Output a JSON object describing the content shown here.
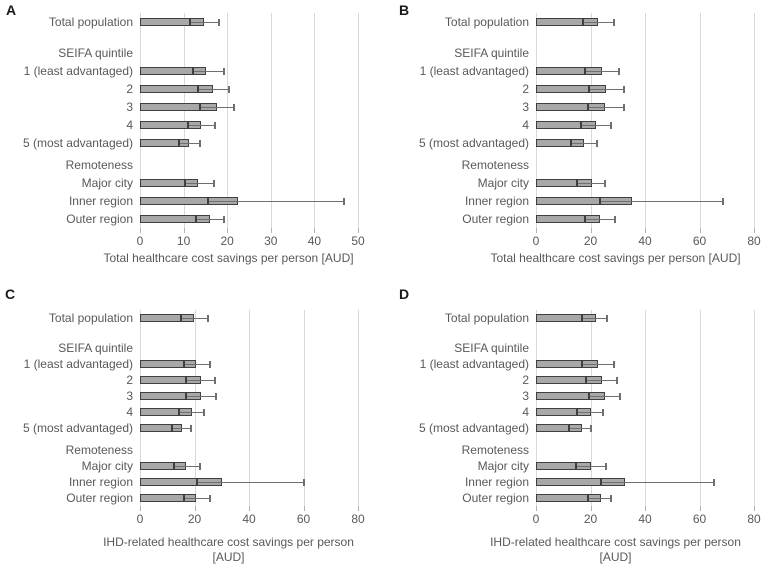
{
  "figure": {
    "description": "Four-panel horizontal bar chart figure with 95% CI error bars",
    "background": "#ffffff"
  },
  "colors": {
    "bar_fill": "#a8a8a8",
    "bar_border": "#3f3f3f",
    "error_bar": "#6f6f6f",
    "error_cap_inner": "#3f3f3f",
    "gridline": "#d9d9d9",
    "tick_mark": "#b3b3b3",
    "text": "#595959",
    "panel_letter": "#1a1a1a"
  },
  "chart_data": [
    {
      "panel": "A",
      "type": "bar",
      "orientation": "horizontal",
      "xlabel_lines": [
        "Total healthcare cost savings per person [AUD]"
      ],
      "xlim": [
        0,
        50
      ],
      "ticks": [
        0,
        10,
        20,
        30,
        40,
        50
      ],
      "grid": true,
      "rows": [
        {
          "kind": "bar",
          "label": "Total population",
          "value": 14.6,
          "ci_low": 11.5,
          "ci_high": 18.2
        },
        {
          "kind": "gap"
        },
        {
          "kind": "header",
          "label": "SEIFA quintile"
        },
        {
          "kind": "bar",
          "label": "1 (least advantaged)",
          "value": 15.2,
          "ci_low": 12.1,
          "ci_high": 19.3
        },
        {
          "kind": "bar",
          "label": "2",
          "value": 16.7,
          "ci_low": 13.3,
          "ci_high": 20.5
        },
        {
          "kind": "bar",
          "label": "3",
          "value": 17.6,
          "ci_low": 13.8,
          "ci_high": 21.5
        },
        {
          "kind": "bar",
          "label": "4",
          "value": 13.9,
          "ci_low": 11.0,
          "ci_high": 17.2
        },
        {
          "kind": "bar",
          "label": "5 (most advantaged)",
          "value": 11.3,
          "ci_low": 8.9,
          "ci_high": 13.8
        },
        {
          "kind": "gap"
        },
        {
          "kind": "header",
          "label": "Remoteness"
        },
        {
          "kind": "bar",
          "label": "Major city",
          "value": 13.2,
          "ci_low": 10.4,
          "ci_high": 17.0
        },
        {
          "kind": "bar",
          "label": "Inner region",
          "value": 22.4,
          "ci_low": 15.7,
          "ci_high": 46.9
        },
        {
          "kind": "bar",
          "label": "Outer region",
          "value": 16.1,
          "ci_low": 12.9,
          "ci_high": 19.3
        }
      ]
    },
    {
      "panel": "B",
      "type": "bar",
      "orientation": "horizontal",
      "xlabel_lines": [
        "Total healthcare cost savings per person [AUD]"
      ],
      "xlim": [
        0,
        80
      ],
      "ticks": [
        0,
        20,
        40,
        60,
        80
      ],
      "grid": true,
      "rows": [
        {
          "kind": "bar",
          "label": "Total population",
          "value": 22.7,
          "ci_low": 17.4,
          "ci_high": 28.5
        },
        {
          "kind": "gap"
        },
        {
          "kind": "header",
          "label": "SEIFA quintile"
        },
        {
          "kind": "bar",
          "label": "1 (least advantaged)",
          "value": 24.2,
          "ci_low": 17.8,
          "ci_high": 30.3
        },
        {
          "kind": "bar",
          "label": "2",
          "value": 25.8,
          "ci_low": 19.3,
          "ci_high": 32.4
        },
        {
          "kind": "bar",
          "label": "3",
          "value": 25.4,
          "ci_low": 18.9,
          "ci_high": 32.2
        },
        {
          "kind": "bar",
          "label": "4",
          "value": 22.0,
          "ci_low": 16.5,
          "ci_high": 27.5
        },
        {
          "kind": "bar",
          "label": "5 (most advantaged)",
          "value": 17.7,
          "ci_low": 12.9,
          "ci_high": 22.3
        },
        {
          "kind": "gap"
        },
        {
          "kind": "header",
          "label": "Remoteness"
        },
        {
          "kind": "bar",
          "label": "Major city",
          "value": 20.5,
          "ci_low": 15.2,
          "ci_high": 25.3
        },
        {
          "kind": "bar",
          "label": "Inner region",
          "value": 35.2,
          "ci_low": 23.4,
          "ci_high": 68.6
        },
        {
          "kind": "bar",
          "label": "Outer region",
          "value": 23.4,
          "ci_low": 18.0,
          "ci_high": 29.1
        }
      ]
    },
    {
      "panel": "C",
      "type": "bar",
      "orientation": "horizontal",
      "xlabel_lines": [
        "IHD-related healthcare cost savings per person",
        "[AUD]"
      ],
      "xlim": [
        0,
        80
      ],
      "ticks": [
        0,
        20,
        40,
        60,
        80
      ],
      "grid": true,
      "rows": [
        {
          "kind": "bar",
          "label": "Total population",
          "value": 19.7,
          "ci_low": 15.1,
          "ci_high": 25.0
        },
        {
          "kind": "gap"
        },
        {
          "kind": "header",
          "label": "SEIFA quintile"
        },
        {
          "kind": "bar",
          "label": "1 (least advantaged)",
          "value": 20.5,
          "ci_low": 16.1,
          "ci_high": 25.8
        },
        {
          "kind": "bar",
          "label": "2",
          "value": 22.3,
          "ci_low": 16.7,
          "ci_high": 27.7
        },
        {
          "kind": "bar",
          "label": "3",
          "value": 22.3,
          "ci_low": 16.9,
          "ci_high": 27.9
        },
        {
          "kind": "bar",
          "label": "4",
          "value": 18.9,
          "ci_low": 14.3,
          "ci_high": 23.4
        },
        {
          "kind": "bar",
          "label": "5 (most advantaged)",
          "value": 15.4,
          "ci_low": 11.7,
          "ci_high": 18.8
        },
        {
          "kind": "gap"
        },
        {
          "kind": "header",
          "label": "Remoteness"
        },
        {
          "kind": "bar",
          "label": "Major city",
          "value": 16.9,
          "ci_low": 12.6,
          "ci_high": 21.9
        },
        {
          "kind": "bar",
          "label": "Inner region",
          "value": 30.2,
          "ci_low": 21.0,
          "ci_high": 60.2
        },
        {
          "kind": "bar",
          "label": "Outer region",
          "value": 20.7,
          "ci_low": 16.0,
          "ci_high": 25.6
        }
      ]
    },
    {
      "panel": "D",
      "type": "bar",
      "orientation": "horizontal",
      "xlabel_lines": [
        "IHD-related healthcare cost savings per person",
        "[AUD]"
      ],
      "xlim": [
        0,
        80
      ],
      "ticks": [
        0,
        20,
        40,
        60,
        80
      ],
      "grid": true,
      "rows": [
        {
          "kind": "bar",
          "label": "Total population",
          "value": 22.1,
          "ci_low": 16.7,
          "ci_high": 26.2
        },
        {
          "kind": "gap"
        },
        {
          "kind": "header",
          "label": "SEIFA quintile"
        },
        {
          "kind": "bar",
          "label": "1 (least advantaged)",
          "value": 22.8,
          "ci_low": 16.9,
          "ci_high": 28.6
        },
        {
          "kind": "bar",
          "label": "2",
          "value": 24.3,
          "ci_low": 18.5,
          "ci_high": 29.6
        },
        {
          "kind": "bar",
          "label": "3",
          "value": 25.2,
          "ci_low": 19.4,
          "ci_high": 30.7
        },
        {
          "kind": "bar",
          "label": "4",
          "value": 20.3,
          "ci_low": 15.1,
          "ci_high": 24.7
        },
        {
          "kind": "bar",
          "label": "5 (most advantaged)",
          "value": 16.9,
          "ci_low": 12.0,
          "ci_high": 20.0
        },
        {
          "kind": "gap"
        },
        {
          "kind": "header",
          "label": "Remoteness"
        },
        {
          "kind": "bar",
          "label": "Major city",
          "value": 20.2,
          "ci_low": 14.5,
          "ci_high": 25.7
        },
        {
          "kind": "bar",
          "label": "Inner region",
          "value": 32.5,
          "ci_low": 23.7,
          "ci_high": 65.3
        },
        {
          "kind": "bar",
          "label": "Outer region",
          "value": 23.7,
          "ci_low": 19.0,
          "ci_high": 27.6
        }
      ]
    }
  ]
}
